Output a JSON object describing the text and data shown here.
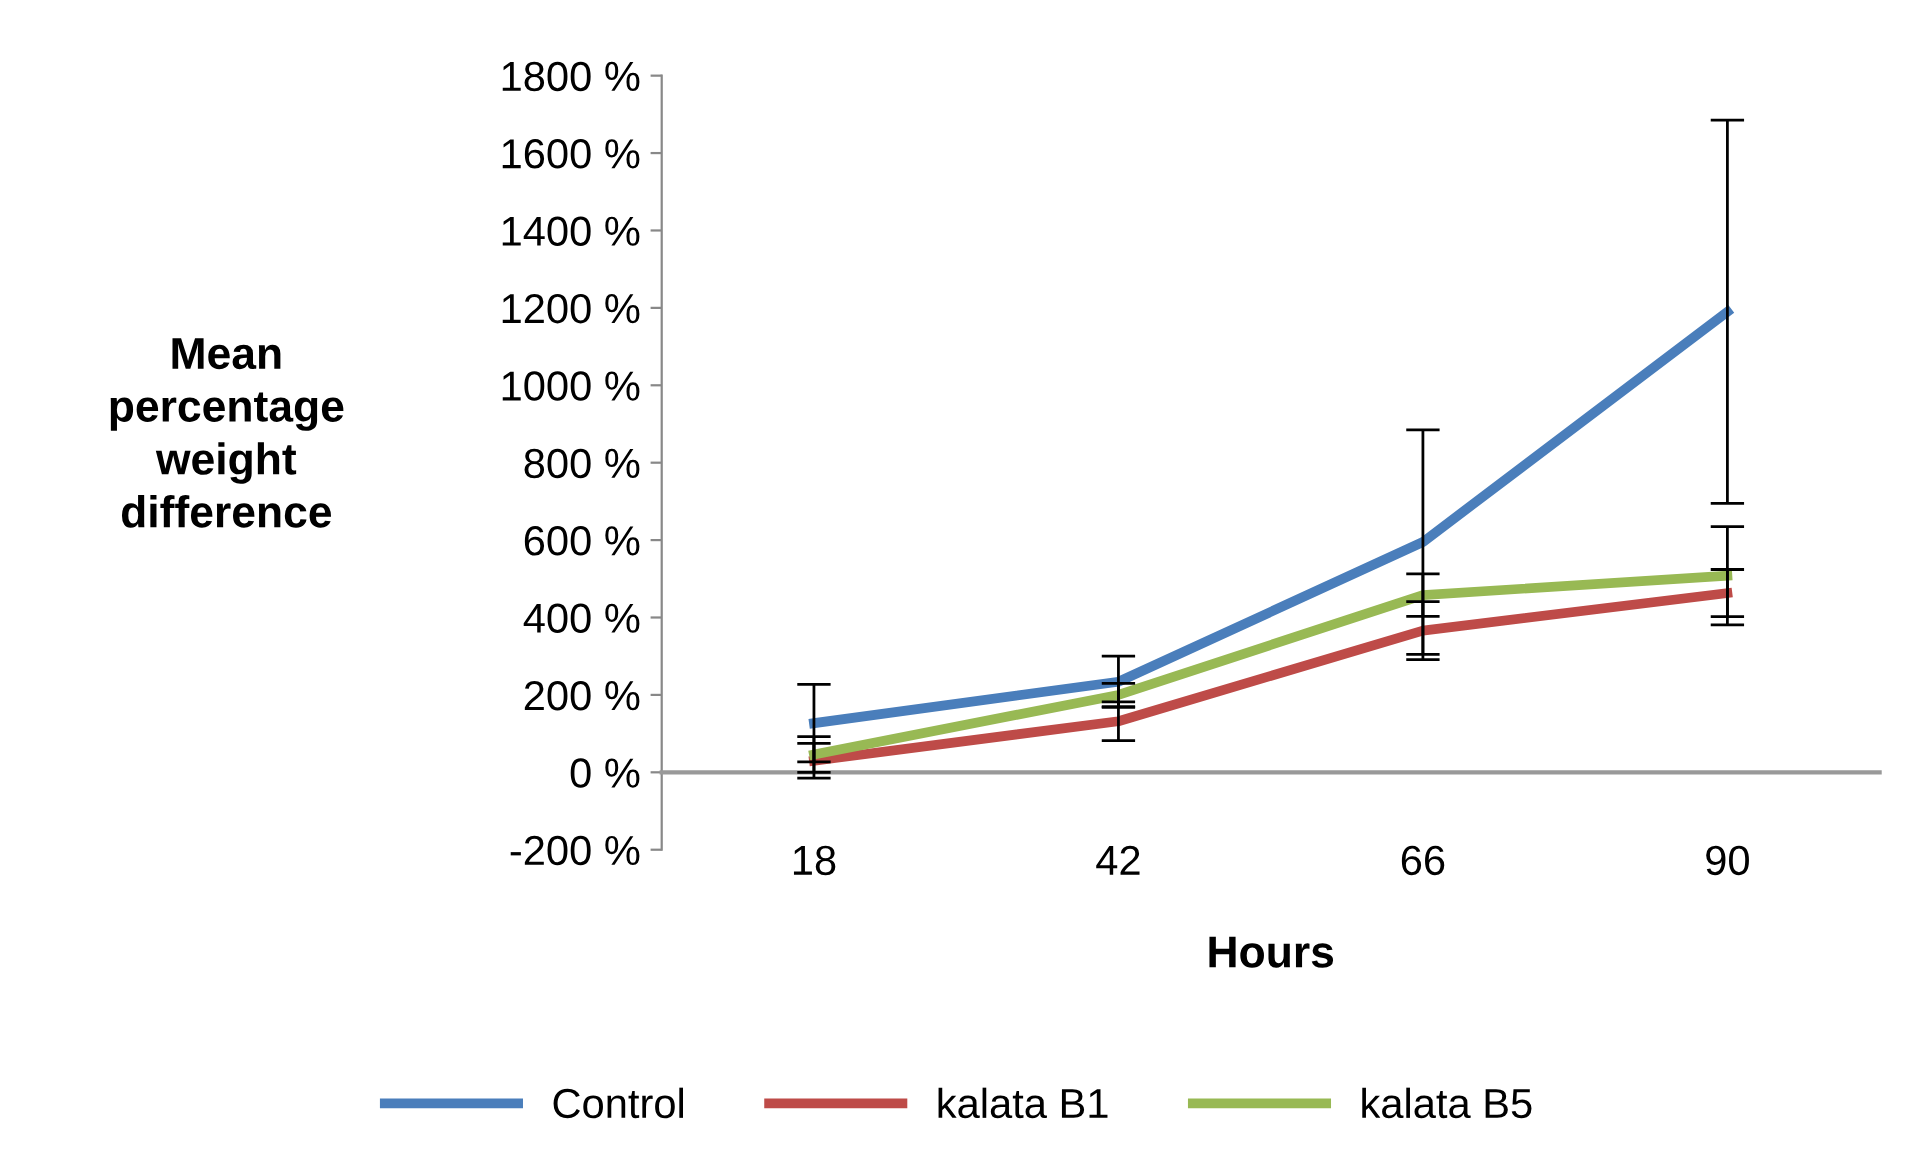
{
  "chart_data": {
    "type": "line",
    "xlabel": "Hours",
    "ylabel": "Mean\npercentage\nweight\ndifference",
    "categories": [
      "18",
      "42",
      "66",
      "90"
    ],
    "series": [
      {
        "name": "Control",
        "color": "#4a7ebb",
        "values": [
          127,
          234,
          595,
          1190
        ],
        "errors": [
          100,
          66,
          290,
          495
        ]
      },
      {
        "name": "kalata B1",
        "color": "#be4b48",
        "values": [
          30,
          132,
          366,
          463
        ],
        "errors": [
          45,
          50,
          75,
          61
        ]
      },
      {
        "name": "kalata B5",
        "color": "#98b954",
        "values": [
          46,
          200,
          458,
          508
        ],
        "errors": [
          46,
          30,
          55,
          127
        ]
      }
    ],
    "ylim": [
      -200,
      1800
    ],
    "yticks": [
      {
        "value": -200,
        "label": "-200 %"
      },
      {
        "value": 0,
        "label": "0 %"
      },
      {
        "value": 200,
        "label": "200 %"
      },
      {
        "value": 400,
        "label": "400 %"
      },
      {
        "value": 600,
        "label": "600 %"
      },
      {
        "value": 800,
        "label": "800 %"
      },
      {
        "value": 1000,
        "label": "1000 %"
      },
      {
        "value": 1200,
        "label": "1200 %"
      },
      {
        "value": 1400,
        "label": "1400 %"
      },
      {
        "value": 1600,
        "label": "1600 %"
      },
      {
        "value": 1800,
        "label": "1800 %"
      }
    ],
    "legend": "bottom",
    "marker": "none",
    "line_style": "solid"
  }
}
